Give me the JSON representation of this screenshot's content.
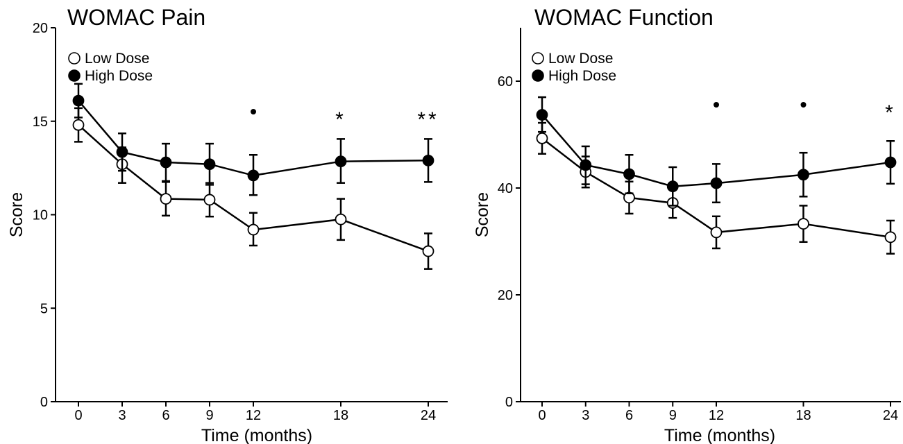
{
  "chart_data": [
    {
      "type": "line",
      "title": "WOMAC Pain",
      "xlabel": "Time (months)",
      "ylabel": "Score",
      "x": [
        0,
        3,
        6,
        9,
        12,
        18,
        24
      ],
      "x_ticks": [
        "0",
        "3",
        "6",
        "9",
        "12",
        "18",
        "24"
      ],
      "y_ticks": [
        "0",
        "5",
        "10",
        "15",
        "20"
      ],
      "ylim": [
        0,
        20
      ],
      "grid": false,
      "legend_position": "top-left",
      "series": [
        {
          "name": "Low Dose",
          "marker": "open-circle",
          "values": [
            14.8,
            12.7,
            10.85,
            10.8,
            9.2,
            9.75,
            8.05
          ],
          "error_bars": [
            [
              13.9,
              15.7
            ],
            [
              11.7,
              13.6
            ],
            [
              9.95,
              11.75
            ],
            [
              9.9,
              11.7
            ],
            [
              8.35,
              10.1
            ],
            [
              8.65,
              10.85
            ],
            [
              7.1,
              9.0
            ]
          ]
        },
        {
          "name": "High Dose",
          "marker": "filled-circle",
          "values": [
            16.1,
            13.35,
            12.8,
            12.7,
            12.1,
            12.85,
            12.9
          ],
          "error_bars": [
            [
              15.2,
              17.0
            ],
            [
              12.35,
              14.35
            ],
            [
              11.8,
              13.8
            ],
            [
              11.6,
              13.8
            ],
            [
              11.05,
              13.2
            ],
            [
              11.7,
              14.05
            ],
            [
              11.75,
              14.05
            ]
          ]
        }
      ],
      "annotations": [
        {
          "x": 12,
          "label": "•"
        },
        {
          "x": 18,
          "label": "*"
        },
        {
          "x": 24,
          "label": "**"
        }
      ]
    },
    {
      "type": "line",
      "title": "WOMAC Function",
      "xlabel": "Time (months)",
      "ylabel": "Score",
      "x": [
        0,
        3,
        6,
        9,
        12,
        18,
        24
      ],
      "x_ticks": [
        "0",
        "3",
        "6",
        "9",
        "12",
        "18",
        "24"
      ],
      "y_ticks": [
        "0",
        "20",
        "40",
        "60"
      ],
      "ylim": [
        0,
        70
      ],
      "grid": false,
      "legend_position": "top-left",
      "series": [
        {
          "name": "Low Dose",
          "marker": "open-circle",
          "values": [
            49.3,
            43.0,
            38.2,
            37.2,
            31.7,
            33.3,
            30.8
          ],
          "error_bars": [
            [
              46.4,
              52.2
            ],
            [
              40.1,
              45.9
            ],
            [
              35.2,
              41.2
            ],
            [
              34.4,
              40.0
            ],
            [
              28.7,
              34.7
            ],
            [
              29.9,
              36.7
            ],
            [
              27.7,
              33.9
            ]
          ]
        },
        {
          "name": "High Dose",
          "marker": "filled-circle",
          "values": [
            53.7,
            44.3,
            42.6,
            40.3,
            40.9,
            42.5,
            44.8
          ],
          "error_bars": [
            [
              50.5,
              57.0
            ],
            [
              40.7,
              47.8
            ],
            [
              39.0,
              46.2
            ],
            [
              36.7,
              43.9
            ],
            [
              37.3,
              44.5
            ],
            [
              38.4,
              46.6
            ],
            [
              40.8,
              48.8
            ]
          ]
        }
      ],
      "annotations": [
        {
          "x": 12,
          "label": "•"
        },
        {
          "x": 18,
          "label": "•"
        },
        {
          "x": 24,
          "label": "*"
        }
      ]
    }
  ]
}
